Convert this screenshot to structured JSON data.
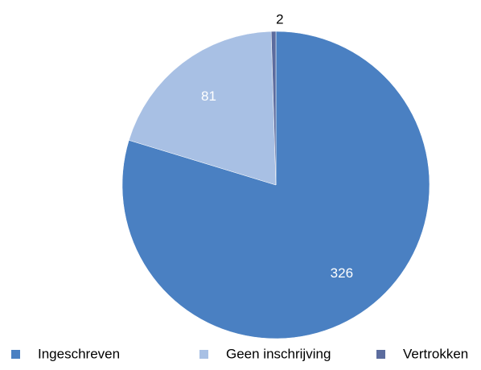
{
  "chart_data": {
    "type": "pie",
    "categories": [
      "Ingeschreven",
      "Geen inschrijving",
      "Vertrokken"
    ],
    "values": [
      326,
      81,
      2
    ],
    "colors": [
      "#4a80c2",
      "#a8c0e4",
      "#5c6c9e"
    ],
    "legend": "bottom"
  }
}
